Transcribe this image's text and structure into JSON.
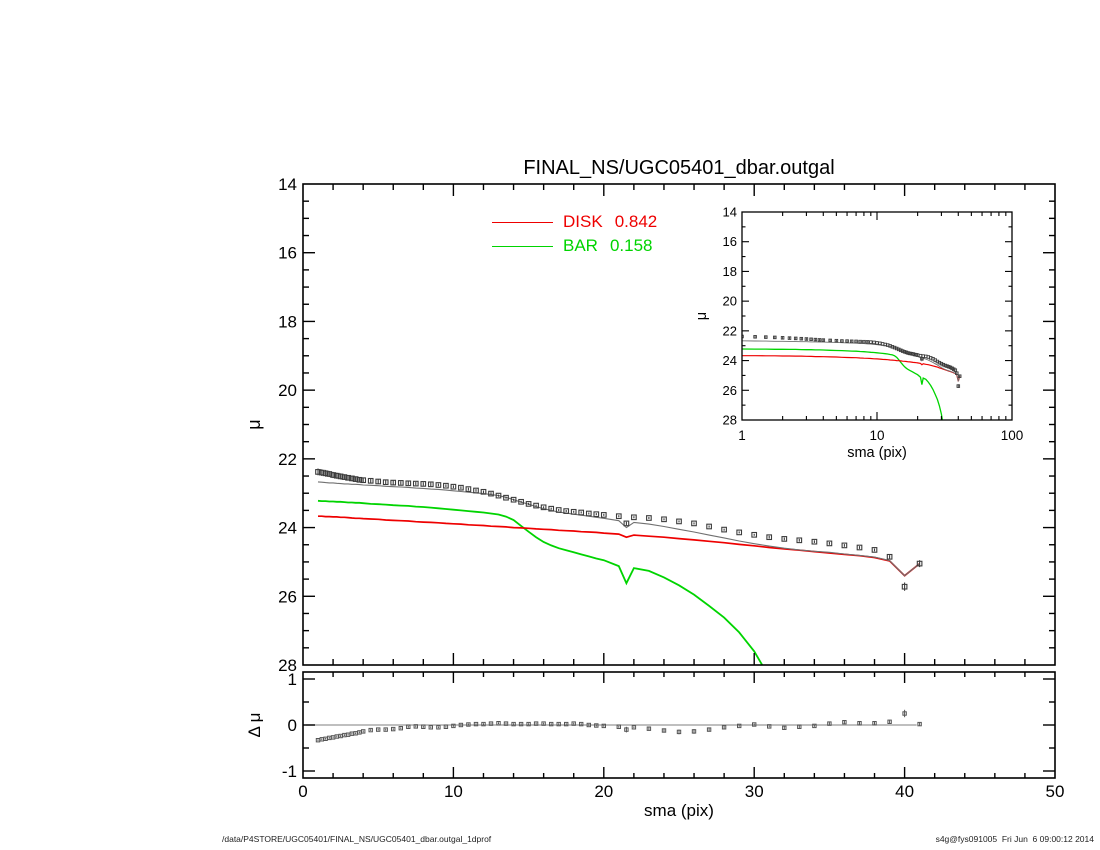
{
  "title": "FINAL_NS/UGC05401_dbar.outgal",
  "legend": {
    "items": [
      {
        "label": "DISK",
        "value": "0.842",
        "color": "#ee0000"
      },
      {
        "label": "BAR",
        "value": "0.158",
        "color": "#00d400"
      }
    ]
  },
  "footer": {
    "left": "/data/P4STORE/UGC05401/FINAL_NS/UGC05401_dbar.outgal_1dprof",
    "right": "s4g@fys091005  Fri Jun  6 09:00:12 2014"
  },
  "chart_data": {
    "type": "line",
    "panels": {
      "main": {
        "ylabel": "μ",
        "xlim": [
          0,
          50
        ],
        "ylim": [
          14,
          28
        ],
        "y_axis_reversed": true,
        "xticks": [
          0,
          10,
          20,
          30,
          40,
          50
        ],
        "yticks": [
          14,
          16,
          18,
          20,
          22,
          24,
          26,
          28
        ],
        "x_minor_step": 2,
        "y_minor_step": 0.5
      },
      "inset": {
        "xlabel": "sma (pix)",
        "ylabel": "μ",
        "xscale": "log",
        "xlim": [
          1,
          100
        ],
        "ylim": [
          14,
          28
        ],
        "y_axis_reversed": true,
        "xticks": [
          1,
          10,
          100
        ],
        "yticks": [
          14,
          16,
          18,
          20,
          22,
          24,
          26,
          28
        ]
      },
      "residual": {
        "xlabel": "sma (pix)",
        "ylabel": "Δ μ",
        "xlim": [
          0,
          50
        ],
        "ylim": [
          -1,
          1
        ],
        "xticks": [
          0,
          10,
          20,
          30,
          40,
          50
        ],
        "yticks": [
          -1,
          0,
          1
        ],
        "zero_line": true,
        "zero_line_extent": [
          0.2,
          40.8
        ]
      }
    },
    "series_styles": {
      "galaxy": "#3c3c3c",
      "model": "#707070",
      "disk": "#ee0000",
      "bar": "#00d400"
    },
    "series": {
      "sma": [
        1,
        1.25,
        1.5,
        1.75,
        2,
        2.25,
        2.5,
        2.75,
        3,
        3.25,
        3.5,
        3.75,
        4,
        4.5,
        5,
        5.5,
        6,
        6.5,
        7,
        7.5,
        8,
        8.5,
        9,
        9.5,
        10,
        10.5,
        11,
        11.5,
        12,
        12.5,
        13,
        13.5,
        14,
        14.5,
        15,
        15.5,
        16,
        16.5,
        17,
        17.5,
        18,
        18.5,
        19,
        19.5,
        20,
        21,
        21.5,
        22,
        23,
        24,
        25,
        26,
        27,
        28,
        29,
        30,
        31,
        32,
        33,
        34,
        35,
        36,
        37,
        38,
        39,
        40,
        41
      ],
      "galaxy_mu": [
        22.38,
        22.4,
        22.42,
        22.44,
        22.47,
        22.49,
        22.51,
        22.53,
        22.55,
        22.57,
        22.59,
        22.61,
        22.62,
        22.64,
        22.66,
        22.68,
        22.69,
        22.7,
        22.71,
        22.72,
        22.73,
        22.74,
        22.76,
        22.78,
        22.81,
        22.84,
        22.88,
        22.92,
        22.96,
        23.01,
        23.07,
        23.13,
        23.19,
        23.25,
        23.31,
        23.36,
        23.41,
        23.45,
        23.49,
        23.52,
        23.54,
        23.56,
        23.59,
        23.61,
        23.63,
        23.67,
        23.88,
        23.7,
        23.72,
        23.76,
        23.82,
        23.88,
        23.97,
        24.06,
        24.14,
        24.21,
        24.28,
        24.33,
        24.37,
        24.41,
        24.46,
        24.52,
        24.58,
        24.65,
        24.85,
        25.72,
        25.05
      ],
      "galaxy_mu_err": [
        0.1,
        0.1,
        0.1,
        0.09,
        0.09,
        0.09,
        0.09,
        0.08,
        0.08,
        0.08,
        0.08,
        0.07,
        0.07,
        0.07,
        0.06,
        0.06,
        0.06,
        0.05,
        0.05,
        0.05,
        0.05,
        0.05,
        0.04,
        0.04,
        0.04,
        0.04,
        0.04,
        0.04,
        0.04,
        0.04,
        0.03,
        0.03,
        0.03,
        0.03,
        0.03,
        0.03,
        0.03,
        0.03,
        0.03,
        0.03,
        0.03,
        0.03,
        0.03,
        0.03,
        0.03,
        0.03,
        0.05,
        0.03,
        0.03,
        0.03,
        0.03,
        0.03,
        0.03,
        0.03,
        0.03,
        0.03,
        0.04,
        0.04,
        0.04,
        0.04,
        0.04,
        0.04,
        0.04,
        0.04,
        0.05,
        0.12,
        0.1
      ],
      "model_mu": [
        22.67,
        22.68,
        22.69,
        22.7,
        22.7,
        22.71,
        22.72,
        22.73,
        22.73,
        22.74,
        22.74,
        22.75,
        22.76,
        22.77,
        22.78,
        22.8,
        22.81,
        22.82,
        22.83,
        22.85,
        22.86,
        22.88,
        22.89,
        22.91,
        22.93,
        22.95,
        22.97,
        22.99,
        23.01,
        23.04,
        23.07,
        23.12,
        23.19,
        23.26,
        23.32,
        23.39,
        23.45,
        23.5,
        23.55,
        23.58,
        23.61,
        23.64,
        23.67,
        23.7,
        23.73,
        23.8,
        24.0,
        23.85,
        23.9,
        23.97,
        24.05,
        24.13,
        24.22,
        24.3,
        24.39,
        24.47,
        24.54,
        24.6,
        24.65,
        24.69,
        24.72,
        24.77,
        24.81,
        24.86,
        24.96,
        25.4,
        25.05
      ],
      "disk_mu": [
        23.67,
        23.67,
        23.68,
        23.68,
        23.69,
        23.69,
        23.7,
        23.7,
        23.71,
        23.72,
        23.73,
        23.73,
        23.74,
        23.75,
        23.76,
        23.78,
        23.79,
        23.8,
        23.81,
        23.83,
        23.84,
        23.85,
        23.86,
        23.88,
        23.89,
        23.9,
        23.92,
        23.93,
        23.94,
        23.96,
        23.97,
        23.98,
        24.0,
        24.01,
        24.02,
        24.04,
        24.05,
        24.06,
        24.08,
        24.09,
        24.1,
        24.12,
        24.13,
        24.14,
        24.16,
        24.19,
        24.28,
        24.22,
        24.25,
        24.28,
        24.32,
        24.36,
        24.4,
        24.44,
        24.49,
        24.53,
        24.58,
        24.62,
        24.66,
        24.7,
        24.74,
        24.78,
        24.82,
        24.87,
        24.97,
        25.4,
        25.05
      ],
      "bar_mu": [
        23.22,
        23.23,
        23.23,
        23.24,
        23.24,
        23.25,
        23.25,
        23.26,
        23.27,
        23.27,
        23.28,
        23.28,
        23.29,
        23.31,
        23.32,
        23.33,
        23.35,
        23.36,
        23.37,
        23.39,
        23.4,
        23.42,
        23.44,
        23.46,
        23.48,
        23.5,
        23.52,
        23.54,
        23.56,
        23.59,
        23.62,
        23.68,
        23.78,
        23.95,
        24.12,
        24.28,
        24.42,
        24.52,
        24.6,
        24.66,
        24.72,
        24.78,
        24.84,
        24.9,
        24.95,
        25.12,
        25.62,
        25.18,
        25.26,
        25.45,
        25.68,
        25.95,
        26.28,
        26.62,
        27.05,
        27.6,
        28.35,
        null,
        null,
        null,
        null,
        null,
        null,
        null,
        null,
        null,
        null
      ],
      "residual_delta_mu": [
        -0.33,
        -0.31,
        -0.3,
        -0.28,
        -0.27,
        -0.25,
        -0.24,
        -0.22,
        -0.21,
        -0.19,
        -0.18,
        -0.16,
        -0.14,
        -0.11,
        -0.1,
        -0.1,
        -0.09,
        -0.07,
        -0.04,
        -0.03,
        -0.04,
        -0.05,
        -0.05,
        -0.04,
        -0.02,
        0.0,
        0.01,
        0.02,
        0.02,
        0.03,
        0.04,
        0.03,
        0.02,
        0.02,
        0.02,
        0.03,
        0.03,
        0.02,
        0.02,
        0.02,
        0.03,
        0.02,
        0.0,
        -0.01,
        -0.02,
        -0.04,
        -0.1,
        -0.05,
        -0.08,
        -0.12,
        -0.15,
        -0.14,
        -0.1,
        -0.05,
        -0.02,
        0.01,
        -0.03,
        -0.06,
        -0.04,
        -0.02,
        0.03,
        0.06,
        0.04,
        0.04,
        0.07,
        0.25,
        0.02
      ],
      "residual_err": [
        0.02,
        0.02,
        0.02,
        0.02,
        0.02,
        0.02,
        0.02,
        0.02,
        0.02,
        0.02,
        0.02,
        0.02,
        0.02,
        0.02,
        0.02,
        0.02,
        0.02,
        0.02,
        0.02,
        0.02,
        0.02,
        0.02,
        0.02,
        0.02,
        0.02,
        0.02,
        0.02,
        0.02,
        0.02,
        0.02,
        0.02,
        0.02,
        0.02,
        0.02,
        0.02,
        0.02,
        0.02,
        0.02,
        0.02,
        0.02,
        0.02,
        0.02,
        0.02,
        0.02,
        0.02,
        0.02,
        0.06,
        0.02,
        0.03,
        0.04,
        0.05,
        0.05,
        0.04,
        0.03,
        0.02,
        0.02,
        0.02,
        0.03,
        0.03,
        0.02,
        0.03,
        0.03,
        0.03,
        0.03,
        0.04,
        0.08,
        0.04
      ]
    }
  }
}
